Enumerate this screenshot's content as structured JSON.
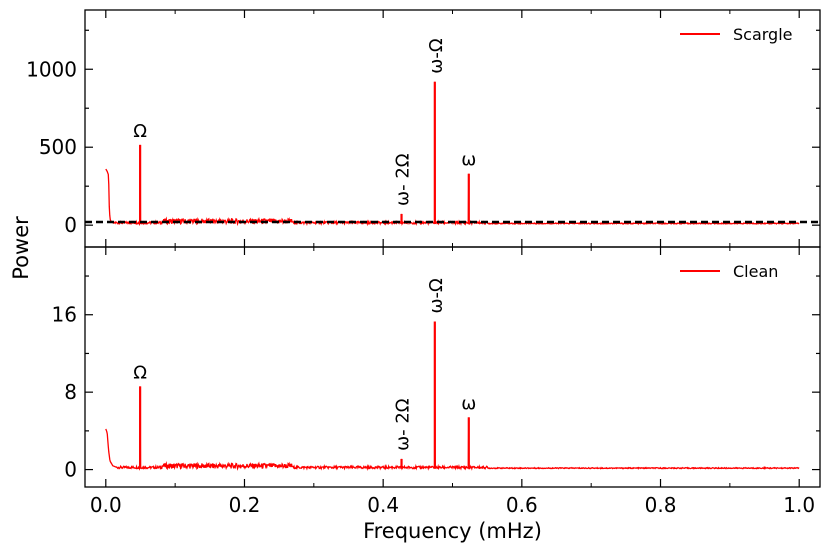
{
  "figure": {
    "xlabel": "Frequency (mHz)",
    "ylabel": "Power"
  },
  "chart_data": [
    {
      "type": "line",
      "panel": "top",
      "legend": "Scargle",
      "legend_placement": "top-right",
      "color": "#ff0000",
      "xlim": [
        -0.03,
        1.03
      ],
      "ylim": [
        -140,
        1380
      ],
      "x_ticks": [
        0.0,
        0.2,
        0.4,
        0.6,
        0.8,
        1.0
      ],
      "y_ticks": [
        0,
        500,
        1000
      ],
      "y_tick_labels": [
        "0",
        "500",
        "1000"
      ],
      "threshold_line": {
        "y": 20,
        "style": "dashed",
        "color": "#000000"
      },
      "baseline": 8,
      "low_freq_decay": [
        {
          "x": 0.0,
          "y": 360
        },
        {
          "x": 0.002,
          "y": 345
        },
        {
          "x": 0.004,
          "y": 320
        },
        {
          "x": 0.005,
          "y": 120
        },
        {
          "x": 0.006,
          "y": 40
        },
        {
          "x": 0.008,
          "y": 20
        },
        {
          "x": 0.012,
          "y": 12
        }
      ],
      "peaks": [
        {
          "x": 0.0495,
          "y": 515,
          "label": "Ω"
        },
        {
          "x": 0.4265,
          "y": 72,
          "label": "ω- 2Ω"
        },
        {
          "x": 0.4745,
          "y": 920,
          "label": "ω-Ω"
        },
        {
          "x": 0.5235,
          "y": 330,
          "label": "ω"
        }
      ]
    },
    {
      "type": "line",
      "panel": "bottom",
      "legend": "Clean",
      "legend_placement": "top-right",
      "color": "#ff0000",
      "xlim": [
        -0.03,
        1.03
      ],
      "ylim": [
        -1.8,
        23.0
      ],
      "x_ticks": [
        0.0,
        0.2,
        0.4,
        0.6,
        0.8,
        1.0
      ],
      "x_tick_labels": [
        "0.0",
        "0.2",
        "0.4",
        "0.6",
        "0.8",
        "1.0"
      ],
      "y_ticks": [
        0,
        8,
        16
      ],
      "y_tick_labels": [
        "0",
        "8",
        "16"
      ],
      "baseline": 0.1,
      "low_freq_decay": [
        {
          "x": 0.0,
          "y": 4.2
        },
        {
          "x": 0.002,
          "y": 3.8
        },
        {
          "x": 0.004,
          "y": 2.0
        },
        {
          "x": 0.006,
          "y": 0.9
        },
        {
          "x": 0.01,
          "y": 0.4
        },
        {
          "x": 0.015,
          "y": 0.25
        }
      ],
      "peaks": [
        {
          "x": 0.0495,
          "y": 8.6,
          "label": "Ω"
        },
        {
          "x": 0.4265,
          "y": 1.1,
          "label": "ω- 2Ω"
        },
        {
          "x": 0.4745,
          "y": 15.3,
          "label": "ω-Ω"
        },
        {
          "x": 0.5235,
          "y": 5.4,
          "label": "ω"
        },
        {
          "x": 0.95,
          "y": 0.3,
          "label": ""
        }
      ]
    }
  ]
}
